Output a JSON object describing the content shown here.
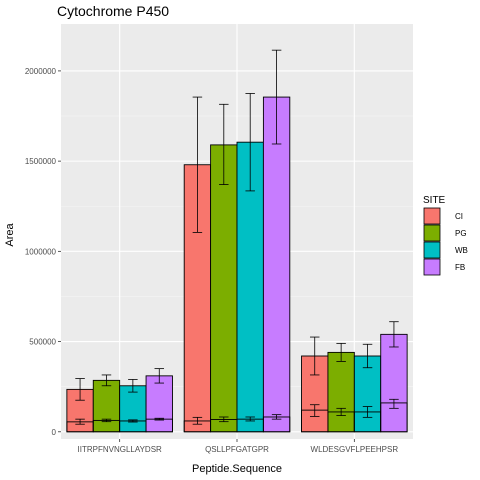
{
  "chart_data": {
    "type": "bar",
    "title": "Cytochrome P450",
    "xlabel": "Peptide.Sequence",
    "ylabel": "Area",
    "categories": [
      "IITRPFNVNGLLAYDSR",
      "QSLLPFGATGPR",
      "WLDESGVFLPEEHPSR"
    ],
    "ylim": [
      -40000,
      2260000
    ],
    "yticks": [
      0,
      500000,
      1000000,
      1500000,
      2000000
    ],
    "grid": true,
    "legend": {
      "title": "SITE",
      "position": "right"
    },
    "series": [
      {
        "name": "CI",
        "color": "#F8766D",
        "values": [
          235000,
          1480000,
          420000
        ],
        "err_high": [
          295000,
          1855000,
          525000
        ],
        "err_low": [
          175000,
          1105000,
          315000
        ],
        "small_values": [
          55000,
          60000,
          120000
        ],
        "small_err_high": [
          70000,
          80000,
          150000
        ],
        "small_err_low": [
          42000,
          42000,
          85000
        ]
      },
      {
        "name": "PG",
        "color": "#7CAE00",
        "values": [
          285000,
          1590000,
          440000
        ],
        "err_high": [
          315000,
          1815000,
          490000
        ],
        "err_low": [
          255000,
          1370000,
          390000
        ],
        "small_values": [
          63000,
          68000,
          110000
        ],
        "small_err_high": [
          70000,
          82000,
          130000
        ],
        "small_err_low": [
          56000,
          56000,
          90000
        ]
      },
      {
        "name": "WB",
        "color": "#00BFC4",
        "values": [
          255000,
          1605000,
          420000
        ],
        "err_high": [
          290000,
          1875000,
          485000
        ],
        "err_low": [
          220000,
          1335000,
          355000
        ],
        "small_values": [
          60000,
          70000,
          110000
        ],
        "small_err_high": [
          66000,
          82000,
          140000
        ],
        "small_err_low": [
          54000,
          60000,
          80000
        ]
      },
      {
        "name": "FB",
        "color": "#C77CFF",
        "values": [
          310000,
          1855000,
          540000
        ],
        "err_high": [
          350000,
          2115000,
          610000
        ],
        "err_low": [
          270000,
          1595000,
          470000
        ],
        "small_values": [
          70000,
          82000,
          160000
        ],
        "small_err_high": [
          75000,
          95000,
          180000
        ],
        "small_err_low": [
          65000,
          70000,
          130000
        ]
      }
    ]
  }
}
